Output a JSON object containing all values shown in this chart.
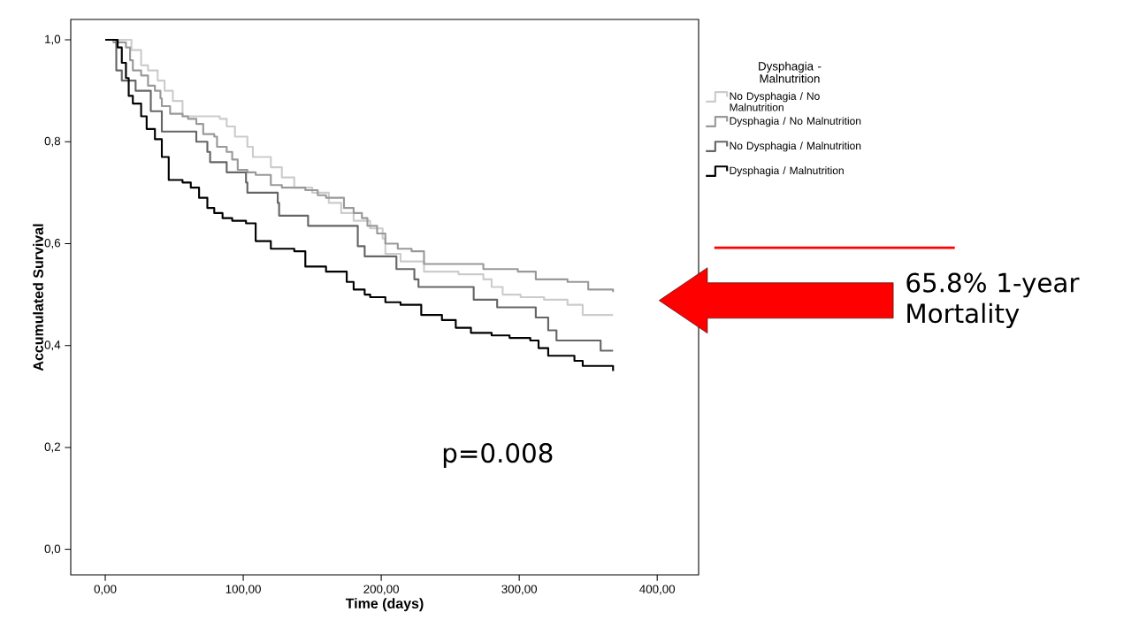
{
  "chart_data": {
    "type": "step",
    "xlabel": "Time (days)",
    "ylabel": "Accumulated Survival",
    "legend_title": "Dysphagia - Malnutrition",
    "legend": "right",
    "xlim": [
      -25,
      430
    ],
    "ylim": [
      -0.05,
      1.04
    ],
    "xticks": [
      {
        "value": 0,
        "label": "0,00"
      },
      {
        "value": 100,
        "label": "100,00"
      },
      {
        "value": 200,
        "label": "200,00"
      },
      {
        "value": 300,
        "label": "300,00"
      },
      {
        "value": 400,
        "label": "400,00"
      }
    ],
    "yticks": [
      {
        "value": 0,
        "label": "0,0"
      },
      {
        "value": 0.2,
        "label": "0,2"
      },
      {
        "value": 0.4,
        "label": "0,4"
      },
      {
        "value": 0.6,
        "label": "0,6"
      },
      {
        "value": 0.8,
        "label": "0,8"
      },
      {
        "value": 1.0,
        "label": "1,0"
      }
    ],
    "series": [
      {
        "name": "No Dysphagia / No Malnutrition",
        "color": "#cccccc",
        "x": [
          0,
          19,
          26,
          31,
          38,
          43,
          49,
          56,
          83,
          88,
          94,
          103,
          107,
          120,
          128,
          137,
          150,
          162,
          171,
          180,
          192,
          201,
          203,
          214,
          231,
          256,
          274,
          280,
          288,
          301,
          318,
          335,
          346,
          368
        ],
        "values": [
          1.0,
          0.98,
          0.95,
          0.94,
          0.92,
          0.9,
          0.88,
          0.85,
          0.845,
          0.83,
          0.81,
          0.79,
          0.77,
          0.75,
          0.73,
          0.71,
          0.7,
          0.68,
          0.66,
          0.645,
          0.63,
          0.61,
          0.58,
          0.565,
          0.545,
          0.54,
          0.53,
          0.515,
          0.5,
          0.495,
          0.49,
          0.48,
          0.46,
          0.46
        ]
      },
      {
        "name": "Dysphagia / No Malnutrition",
        "color": "#999999",
        "x": [
          0,
          6,
          15,
          18,
          20,
          26,
          31,
          36,
          40,
          41,
          47,
          56,
          60,
          66,
          71,
          79,
          81,
          88,
          92,
          96,
          103,
          109,
          120,
          128,
          145,
          154,
          160,
          173,
          180,
          186,
          190,
          197,
          203,
          212,
          222,
          231,
          274,
          299,
          312,
          335,
          350,
          368
        ],
        "values": [
          1.0,
          0.995,
          0.985,
          0.96,
          0.94,
          0.93,
          0.91,
          0.9,
          0.885,
          0.87,
          0.855,
          0.85,
          0.845,
          0.835,
          0.815,
          0.81,
          0.79,
          0.78,
          0.765,
          0.745,
          0.74,
          0.735,
          0.715,
          0.71,
          0.705,
          0.695,
          0.69,
          0.67,
          0.66,
          0.65,
          0.635,
          0.62,
          0.6,
          0.59,
          0.585,
          0.56,
          0.55,
          0.545,
          0.53,
          0.525,
          0.51,
          0.505
        ]
      },
      {
        "name": "No Dysphagia / Malnutrition",
        "color": "#666666",
        "x": [
          0,
          8,
          12,
          22,
          33,
          41,
          66,
          74,
          76,
          88,
          102,
          103,
          125,
          126,
          147,
          180,
          183,
          188,
          211,
          224,
          227,
          267,
          284,
          312,
          321,
          327,
          359,
          368
        ],
        "values": [
          1.0,
          0.94,
          0.92,
          0.9,
          0.86,
          0.82,
          0.8,
          0.78,
          0.76,
          0.74,
          0.72,
          0.7,
          0.68,
          0.655,
          0.635,
          0.635,
          0.595,
          0.575,
          0.55,
          0.53,
          0.515,
          0.49,
          0.475,
          0.455,
          0.43,
          0.41,
          0.39,
          0.39
        ]
      },
      {
        "name": "Dysphagia / Malnutrition",
        "color": "#000000",
        "x": [
          0,
          6,
          9,
          12,
          15,
          17,
          20,
          26,
          30,
          36,
          41,
          46,
          56,
          62,
          68,
          74,
          79,
          85,
          92,
          102,
          109,
          120,
          137,
          145,
          160,
          175,
          180,
          188,
          192,
          203,
          214,
          229,
          244,
          254,
          265,
          280,
          293,
          308,
          314,
          321,
          340,
          346,
          368
        ],
        "values": [
          1.0,
          1.0,
          0.985,
          0.955,
          0.925,
          0.89,
          0.875,
          0.85,
          0.825,
          0.805,
          0.77,
          0.725,
          0.72,
          0.71,
          0.69,
          0.67,
          0.66,
          0.65,
          0.645,
          0.64,
          0.605,
          0.59,
          0.585,
          0.555,
          0.545,
          0.525,
          0.51,
          0.5,
          0.495,
          0.485,
          0.48,
          0.46,
          0.45,
          0.435,
          0.425,
          0.42,
          0.415,
          0.41,
          0.395,
          0.38,
          0.37,
          0.36,
          0.35
        ]
      }
    ],
    "annotations": [
      "p=0.008",
      "65.8% 1-year Mortality"
    ]
  }
}
